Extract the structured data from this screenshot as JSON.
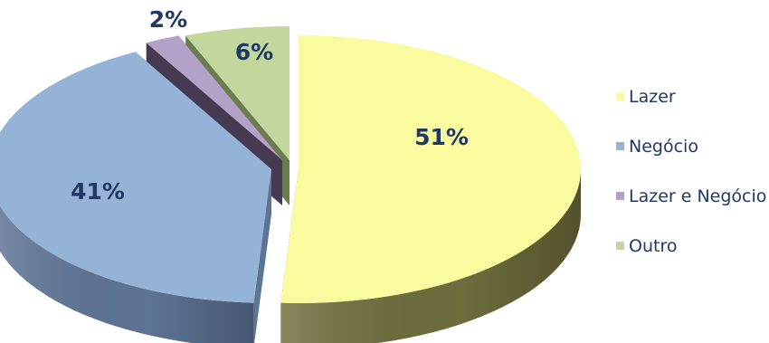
{
  "chart_data": {
    "type": "pie",
    "style": "3d-exploded",
    "legend_position": "right",
    "slices": [
      {
        "name": "Lazer",
        "value": 51,
        "label": "51%",
        "color": "#FAFA9E",
        "side": "#6E6D3C"
      },
      {
        "name": "Negócio",
        "value": 41,
        "label": "41%",
        "color": "#95B3D7",
        "side": "#5E7496"
      },
      {
        "name": "Lazer e Negócio",
        "value": 2,
        "label": "2%",
        "color": "#B3A2C7",
        "side": "#463A52"
      },
      {
        "name": "Outro",
        "value": 6,
        "label": "6%",
        "color": "#C3D69B",
        "side": "#6B7D4E"
      }
    ]
  }
}
